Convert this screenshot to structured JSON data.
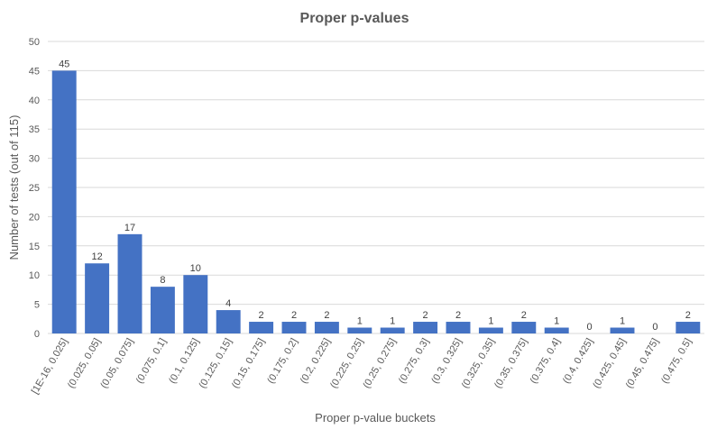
{
  "chart_data": {
    "type": "bar",
    "title": "Proper p-values",
    "xlabel": "Proper p-value buckets",
    "ylabel": "Number of tests (out of 115)",
    "categories": [
      "[1E-16, 0.025]",
      "(0.025, 0.05]",
      "(0.05, 0.075]",
      "(0.075, 0.1]",
      "(0.1, 0.125]",
      "(0.125, 0.15]",
      "(0.15, 0.175]",
      "(0.175, 0.2]",
      "(0.2, 0.225]",
      "(0.225, 0.25]",
      "(0.25, 0.275]",
      "(0.275, 0.3]",
      "(0.3, 0.325]",
      "(0.325, 0.35]",
      "(0.35, 0.375]",
      "(0.375, 0.4]",
      "(0.4, 0.425]",
      "(0.425, 0.45]",
      "(0.45, 0.475]",
      "(0.475, 0.5]"
    ],
    "values": [
      45,
      12,
      17,
      8,
      10,
      4,
      2,
      2,
      2,
      1,
      1,
      2,
      2,
      1,
      2,
      1,
      0,
      1,
      0,
      2
    ],
    "ylim": [
      0,
      50
    ],
    "yticks": [
      0,
      5,
      10,
      15,
      20,
      25,
      30,
      35,
      40,
      45,
      50
    ],
    "grid": true,
    "colors": {
      "bar": "#4472C4",
      "grid": "#D9D9D9",
      "text": "#595959",
      "data_label": "#404040"
    }
  }
}
